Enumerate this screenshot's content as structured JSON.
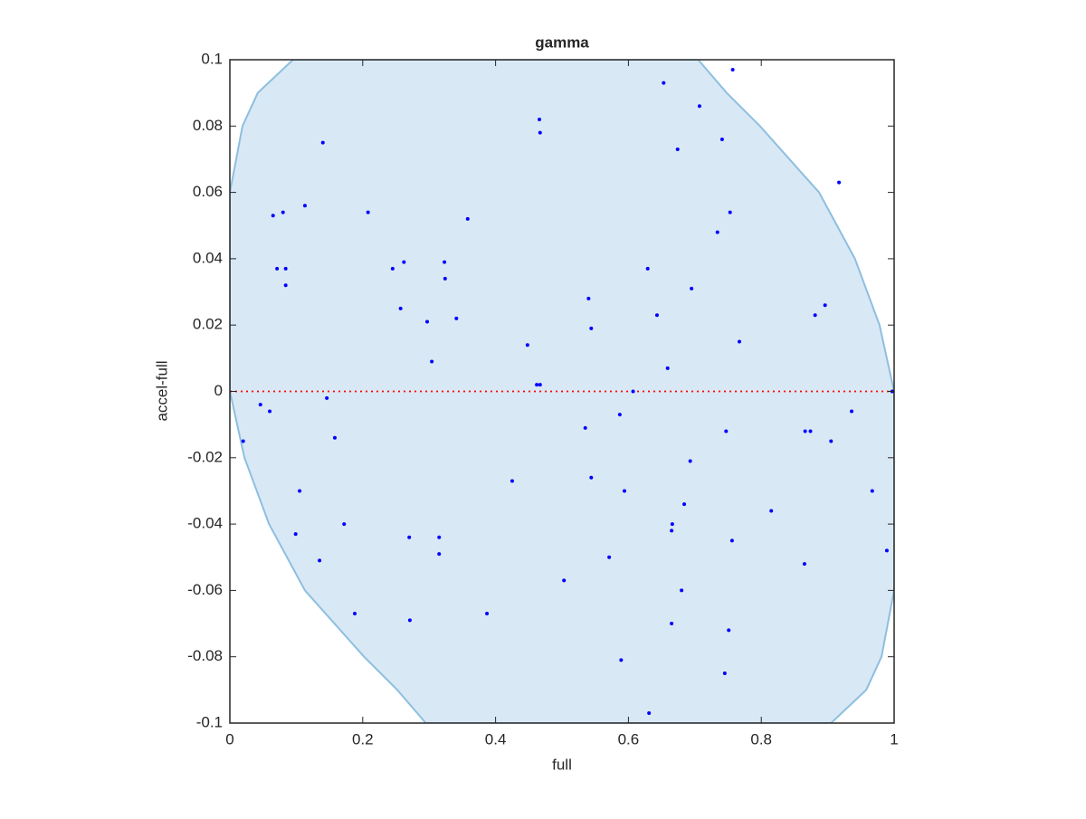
{
  "chart_data": {
    "type": "scatter",
    "title": "gamma",
    "xlabel": "full",
    "ylabel": "accel-full",
    "xlim": [
      0,
      1
    ],
    "ylim": [
      -0.1,
      0.1
    ],
    "xticks": [
      0,
      0.2,
      0.4,
      0.6,
      0.8,
      1
    ],
    "yticks": [
      -0.1,
      -0.08,
      -0.06,
      -0.04,
      -0.02,
      0,
      0.02,
      0.04,
      0.06,
      0.08,
      0.1
    ],
    "region": {
      "color": "#d9e8f5",
      "edge_color": "#8dbfe0",
      "x": [
        0,
        0.019,
        0.042,
        0.095,
        0.705,
        0.748,
        0.798,
        0.887,
        0.941,
        0.978,
        1,
        1,
        0.981,
        0.958,
        0.905,
        0.295,
        0.252,
        0.202,
        0.113,
        0.059,
        0.022,
        0
      ],
      "y": [
        0.06,
        0.08,
        0.09,
        0.1,
        0.1,
        0.09,
        0.08,
        0.06,
        0.04,
        0.02,
        0,
        -0.06,
        -0.08,
        -0.09,
        -0.1,
        -0.1,
        -0.09,
        -0.08,
        -0.06,
        -0.04,
        -0.02,
        0
      ]
    },
    "reference_line": {
      "y": 0,
      "color": "#ff0000"
    },
    "series": [
      {
        "color": "#0000ff",
        "x": [
          0.757,
          0.653,
          0.707,
          0.466,
          0.467,
          0.14,
          0.674,
          0.741,
          0.917,
          0.113,
          0.065,
          0.08,
          0.208,
          0.358,
          0.753,
          0.734,
          0.071,
          0.084,
          0.084,
          0.245,
          0.262,
          0.323,
          0.324,
          0.257,
          0.297,
          0.341,
          0.304,
          0.54,
          0.544,
          0.629,
          0.643,
          0.695,
          0.896,
          0.881,
          0.767,
          0.448,
          0.659,
          0.462,
          0.467,
          0.607,
          0.997,
          0.146,
          0.046,
          0.06,
          0.02,
          0.158,
          0.535,
          0.587,
          0.747,
          0.866,
          0.874,
          0.905,
          0.936,
          0.693,
          0.425,
          0.544,
          0.105,
          0.594,
          0.967,
          0.684,
          0.815,
          0.172,
          0.099,
          0.666,
          0.665,
          0.756,
          0.27,
          0.315,
          0.315,
          0.571,
          0.135,
          0.865,
          0.989,
          0.503,
          0.68,
          0.188,
          0.387,
          0.271,
          0.665,
          0.751,
          0.589,
          0.745,
          0.631
        ],
        "values": [
          0.097,
          0.093,
          0.086,
          0.082,
          0.078,
          0.075,
          0.073,
          0.076,
          0.063,
          0.056,
          0.053,
          0.054,
          0.054,
          0.052,
          0.054,
          0.048,
          0.037,
          0.037,
          0.032,
          0.037,
          0.039,
          0.039,
          0.034,
          0.025,
          0.021,
          0.022,
          0.009,
          0.028,
          0.019,
          0.037,
          0.023,
          0.031,
          0.026,
          0.023,
          0.015,
          0.014,
          0.007,
          0.002,
          0.002,
          0.0,
          0.0,
          -0.002,
          -0.004,
          -0.006,
          -0.015,
          -0.014,
          -0.011,
          -0.007,
          -0.012,
          -0.012,
          -0.012,
          -0.015,
          -0.006,
          -0.021,
          -0.027,
          -0.026,
          -0.03,
          -0.03,
          -0.03,
          -0.034,
          -0.036,
          -0.04,
          -0.043,
          -0.04,
          -0.042,
          -0.045,
          -0.044,
          -0.044,
          -0.049,
          -0.05,
          -0.051,
          -0.052,
          -0.048,
          -0.057,
          -0.06,
          -0.067,
          -0.067,
          -0.069,
          -0.07,
          -0.072,
          -0.081,
          -0.085,
          -0.097
        ]
      }
    ]
  }
}
